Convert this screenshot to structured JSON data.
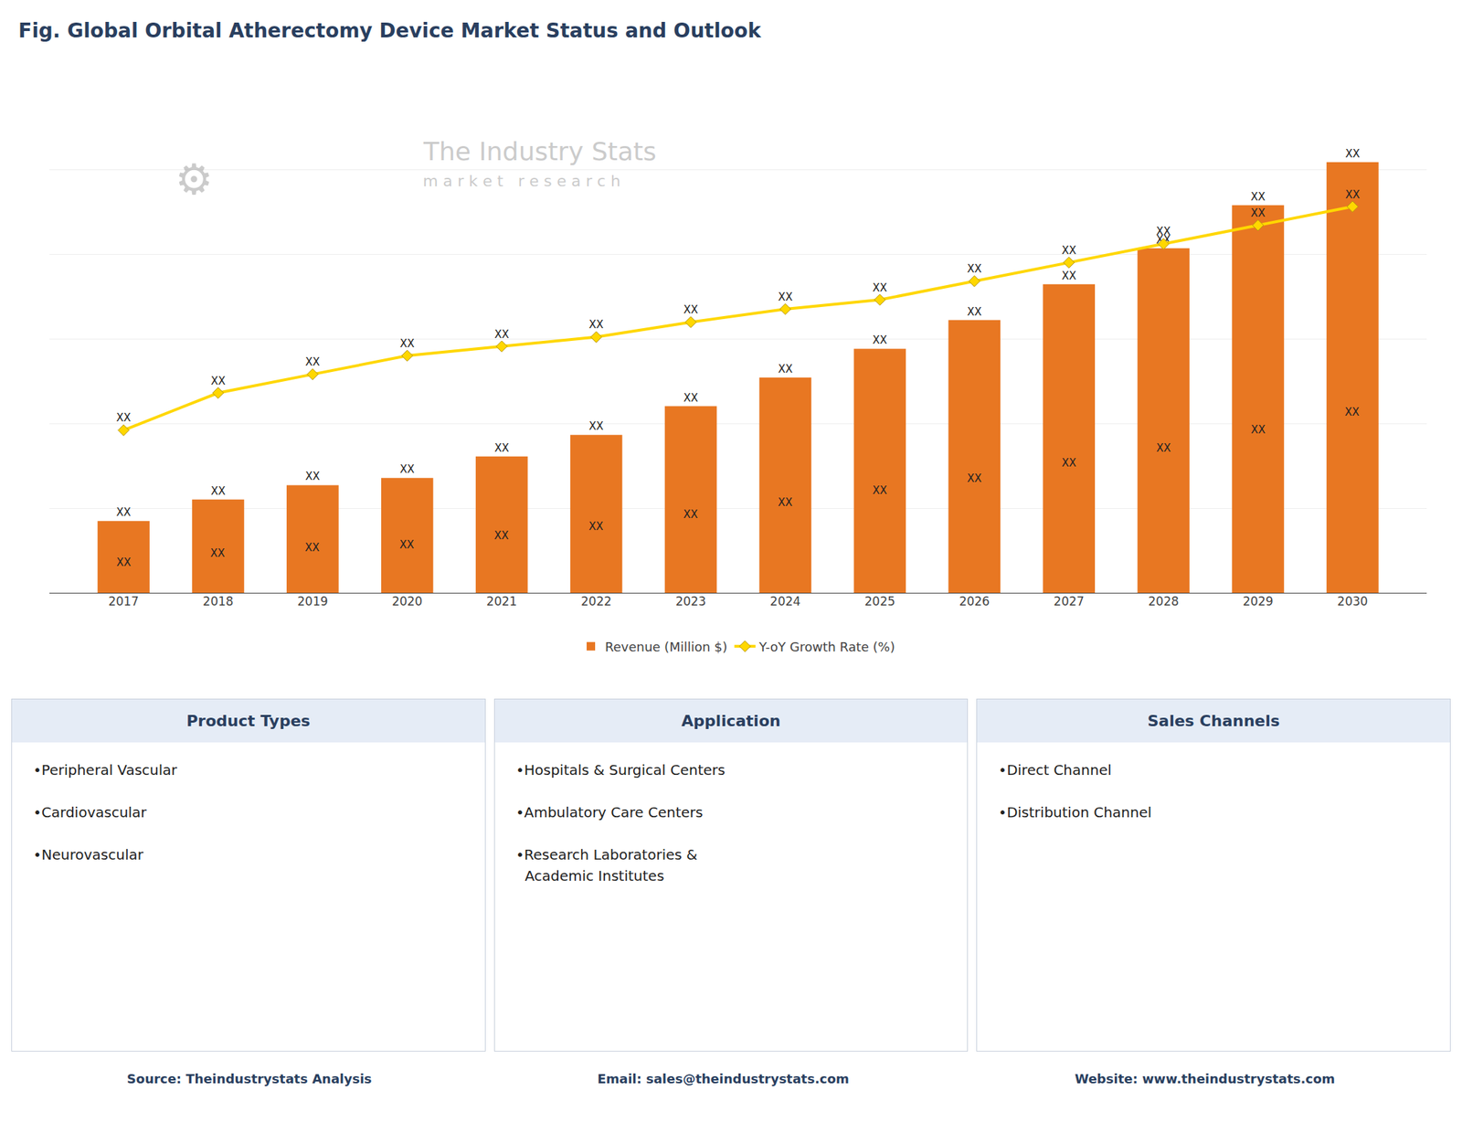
{
  "chart_data": {
    "type": "bar",
    "title": "Fig. Global Orbital Atherectomy Device Market Status and Outlook",
    "categories": [
      "2017",
      "2018",
      "2019",
      "2020",
      "2021",
      "2022",
      "2023",
      "2024",
      "2025",
      "2026",
      "2027",
      "2028",
      "2029",
      "2030"
    ],
    "series": [
      {
        "name": "Revenue (Million $)",
        "type": "bar",
        "color": "#E87722",
        "values": [
          10,
          13,
          15,
          16,
          19,
          22,
          26,
          30,
          34,
          38,
          43,
          48,
          54,
          60
        ],
        "value_labels": [
          "XX",
          "XX",
          "XX",
          "XX",
          "XX",
          "XX",
          "XX",
          "XX",
          "XX",
          "XX",
          "XX",
          "XX",
          "XX",
          "XX"
        ],
        "inner_labels": [
          "XX",
          "XX",
          "XX",
          "XX",
          "XX",
          "XX",
          "XX",
          "XX",
          "XX",
          "XX",
          "XX",
          "XX",
          "XX",
          "XX"
        ]
      },
      {
        "name": "Y-oY Growth Rate (%)",
        "type": "line",
        "color": "#FFD700",
        "marker": "diamond",
        "values": [
          22.656,
          27.848,
          30.444,
          33.04,
          34.338,
          35.636,
          37.7128,
          39.53,
          40.828,
          43.424,
          46.02,
          48.616,
          51.212,
          53.808
        ],
        "value_labels": [
          "XX",
          "XX",
          "XX",
          "XX",
          "XX",
          "XX",
          "XX",
          "XX",
          "XX",
          "XX",
          "XX",
          "XX",
          "XX",
          "XX"
        ]
      }
    ],
    "ylim": [
      0,
      70.8
    ],
    "yticks": [
      0,
      11.8,
      23.6,
      35.4,
      47.2,
      59,
      70.8
    ],
    "grid": true,
    "legend": "bottom",
    "tick_labels": "x",
    "annotations": [
      "The Industry Stats",
      "m a r k e t   r e s e a r c h",
      "⚙"
    ]
  },
  "table": {
    "headers": [
      "Product Types",
      "Application",
      "Sales Channels"
    ],
    "columns": [
      [
        "•Peripheral Vascular",
        "•Cardiovascular",
        "•Neurovascular"
      ],
      [
        "•Hospitals & Surgical Centers",
        "•Ambulatory Care Centers",
        "•Research Laboratories &\n  Academic Institutes"
      ],
      [
        "•Direct Channel",
        "•Distribution Channel"
      ]
    ]
  },
  "footer": [
    "Source: Theindustrystats Analysis",
    "Email: sales@theindustrystats.com",
    "Website: www.theindustrystats.com"
  ]
}
